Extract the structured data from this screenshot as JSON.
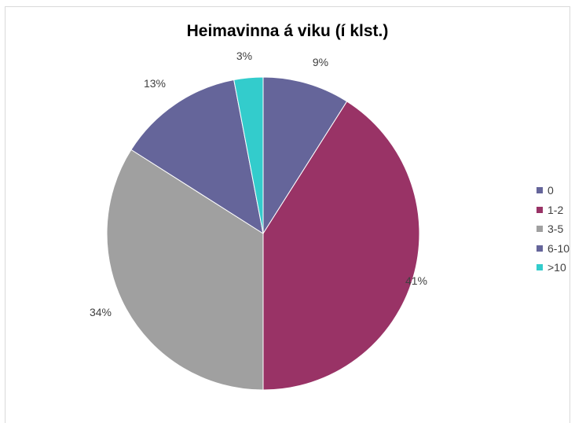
{
  "chart_data": {
    "type": "pie",
    "title": "Heimavinna á viku (í klst.)",
    "categories": [
      "0",
      "1-2",
      "3-5",
      "6-10",
      ">10"
    ],
    "values": [
      9,
      41,
      34,
      13,
      3
    ],
    "labels": [
      "9%",
      "41%",
      "34%",
      "13%",
      "3%"
    ],
    "colors": [
      "#65659a",
      "#993366",
      "#a0a0a0",
      "#65659a",
      "#33cccc"
    ],
    "legend_position": "right"
  }
}
